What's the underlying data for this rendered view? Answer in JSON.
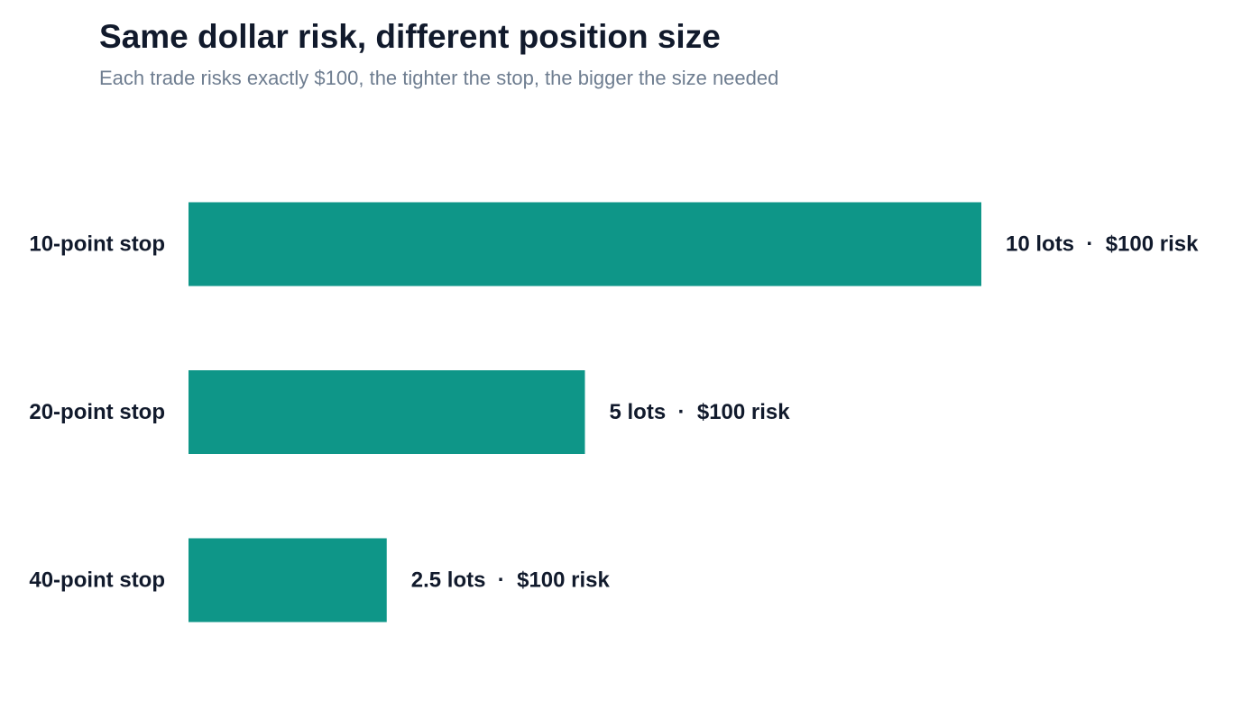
{
  "chart_data": {
    "type": "bar",
    "orientation": "horizontal",
    "title": "Same dollar risk, different position size",
    "subtitle": "Each trade risks exactly $100, the tighter the stop, the bigger the size needed",
    "categories": [
      "10-point stop",
      "20-point stop",
      "40-point stop"
    ],
    "values": [
      10,
      5,
      2.5
    ],
    "data_labels": [
      "10 lots  ·  $100 risk",
      "5 lots  ·  $100 risk",
      "2.5 lots  ·  $100 risk"
    ],
    "xlim": [
      0,
      10
    ],
    "grid": false,
    "legend": "none"
  },
  "colors": {
    "bar": "#0e9688",
    "title": "#111a2c",
    "subtitle": "#6e7d90",
    "label": "#111a2c"
  }
}
